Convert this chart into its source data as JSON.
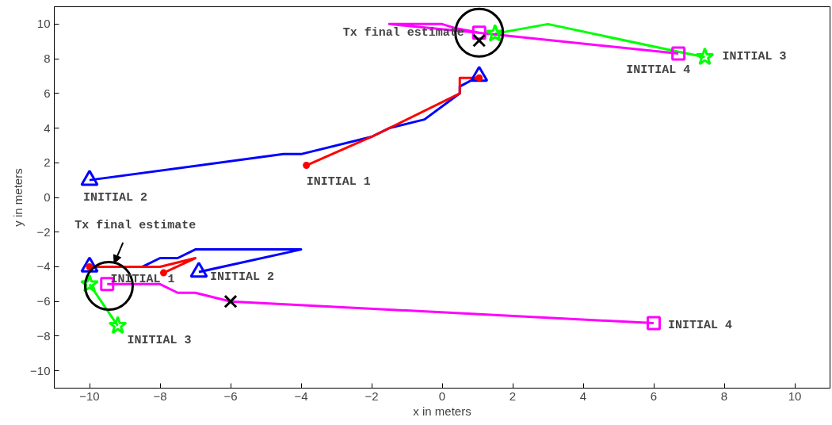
{
  "chart_data": {
    "type": "line",
    "xlabel": "x in meters",
    "ylabel": "y in meters",
    "xlim": [
      -11,
      11
    ],
    "ylim": [
      -11,
      11
    ],
    "xticks": [
      -10,
      -8,
      -6,
      -4,
      -2,
      0,
      2,
      4,
      6,
      8,
      10
    ],
    "yticks": [
      -10,
      -8,
      -6,
      -4,
      -2,
      0,
      2,
      4,
      6,
      8,
      10
    ],
    "series": [
      {
        "color": "#0000ff",
        "x": [
          -10,
          -4.5,
          -4,
          -2,
          -1.5,
          -0.5,
          0.5,
          0.5,
          1.05
        ],
        "values": [
          1,
          2.5,
          2.5,
          3.5,
          4,
          4.5,
          6,
          6.4,
          7
        ]
      },
      {
        "color": "#ff0000",
        "x": [
          -3.85,
          -2,
          0.5,
          0.5,
          1.05
        ],
        "values": [
          1.85,
          3.5,
          6,
          6.9,
          6.9
        ]
      },
      {
        "color": "#00ff00",
        "x": [
          7.45,
          6.7,
          3,
          1.5
        ],
        "values": [
          8.1,
          8.4,
          10,
          9.45
        ]
      },
      {
        "color": "#ff00ff",
        "x": [
          6.7,
          1.3,
          -1.5,
          0,
          0.4,
          1.05
        ],
        "values": [
          8.3,
          9.45,
          10,
          10,
          9.75,
          9.5
        ]
      },
      {
        "color": "#0000ff",
        "x": [
          -10,
          -8.5,
          -8,
          -7.5,
          -7,
          -4,
          -6.9
        ],
        "values": [
          -4,
          -4,
          -3.5,
          -3.5,
          -3,
          -3,
          -4.3
        ]
      },
      {
        "color": "#ff0000",
        "x": [
          -7.9,
          -7,
          -8,
          -10
        ],
        "values": [
          -4.35,
          -3.5,
          -4,
          -4
        ]
      },
      {
        "color": "#00ff00",
        "x": [
          -9.2,
          -10
        ],
        "values": [
          -7.4,
          -5
        ]
      },
      {
        "color": "#ff00ff",
        "x": [
          6,
          -6,
          -7,
          -7.5,
          -8,
          -9.5
        ],
        "values": [
          -7.25,
          -6,
          -5.5,
          -5.5,
          -5,
          -5
        ]
      },
      {
        "type": "scatter",
        "color": "#0000ff",
        "marker": "triangle",
        "x": [
          -10,
          1.05,
          -10,
          -6.9
        ],
        "values": [
          1,
          7,
          -4,
          -4.3
        ]
      },
      {
        "type": "scatter",
        "color": "#ff0000",
        "marker": "circle",
        "x": [
          -3.85,
          1.05,
          -7.9,
          -10
        ],
        "values": [
          1.85,
          6.9,
          -4.35,
          -4
        ]
      },
      {
        "type": "scatter",
        "color": "#00ff00",
        "marker": "star",
        "x": [
          7.45,
          1.5,
          -9.2,
          -10
        ],
        "values": [
          8.1,
          9.45,
          -7.4,
          -5
        ]
      },
      {
        "type": "scatter",
        "color": "#ff00ff",
        "marker": "square",
        "x": [
          6.7,
          1.05,
          6,
          -9.5
        ],
        "values": [
          8.3,
          9.5,
          -7.25,
          -5
        ]
      },
      {
        "type": "bubble",
        "color": "#000000",
        "x": [
          1.05,
          -9.45
        ],
        "values": [
          9.5,
          -5.1
        ],
        "sizes": [
          1,
          1
        ]
      },
      {
        "type": "scatter",
        "color": "#000000",
        "marker": "cross",
        "x": [
          1.05,
          -6
        ],
        "values": [
          9.05,
          -6
        ]
      }
    ],
    "annotations": [
      {
        "text": "INITIAL 1",
        "x": -3.85,
        "y": 1.85
      },
      {
        "text": "INITIAL 2",
        "x": -10,
        "y": 1
      },
      {
        "text": "INITIAL 3",
        "x": 7.45,
        "y": 8.1
      },
      {
        "text": "INITIAL 4",
        "x": 6.7,
        "y": 8.3
      },
      {
        "text": "Tx final estimate",
        "x": 1.05,
        "y": 9.5
      },
      {
        "text": "INITIAL 1",
        "x": -7.9,
        "y": -4.35
      },
      {
        "text": "INITIAL 2",
        "x": -6.9,
        "y": -4.3
      },
      {
        "text": "INITIAL 3",
        "x": -9.2,
        "y": -7.4
      },
      {
        "text": "INITIAL 4",
        "x": 6,
        "y": -7.25
      },
      {
        "text": "Tx final estimate",
        "x": -9.3,
        "y": -3.8
      }
    ]
  }
}
